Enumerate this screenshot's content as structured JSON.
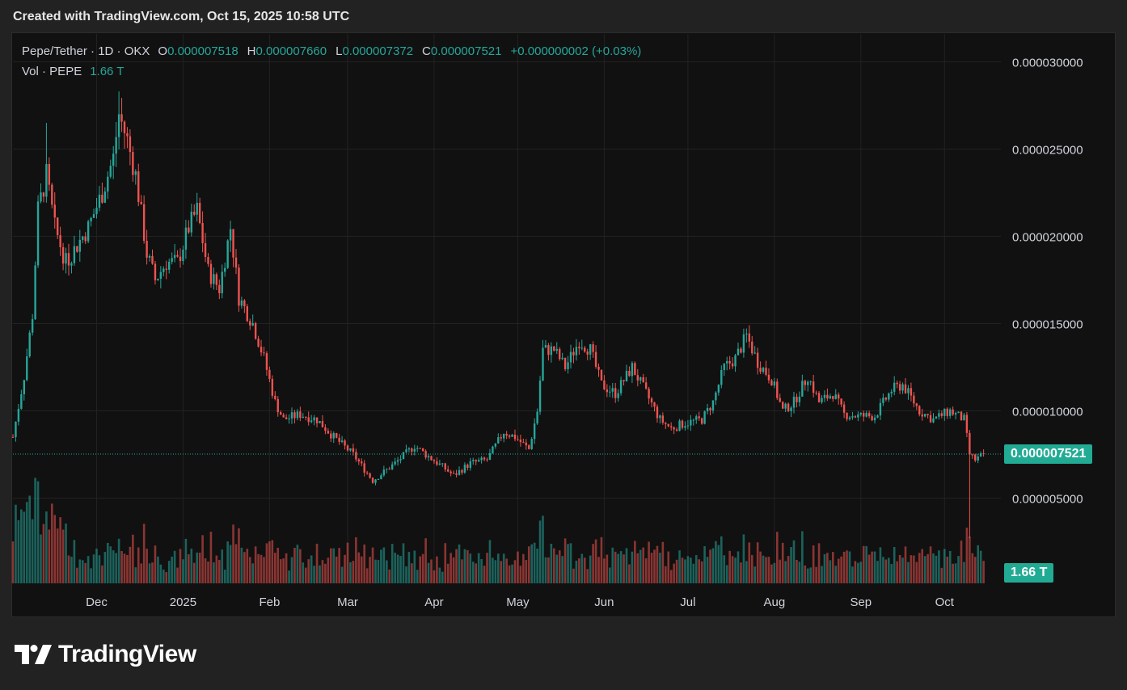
{
  "caption": "Created with TradingView.com, Oct 15, 2025 10:58 UTC",
  "legend": {
    "symbol": "Pepe/Tether · 1D · OKX",
    "open_label": "O",
    "open": "0.000007518",
    "high_label": "H",
    "high": "0.000007660",
    "low_label": "L",
    "low": "0.000007372",
    "close_label": "C",
    "close": "0.000007521",
    "change": "+0.000000002 (+0.03%)",
    "vol_label": "Vol · PEPE",
    "vol": "1.66 T"
  },
  "price_badge": "0.000007521",
  "volume_badge": "1.66 T",
  "brand": "TradingView",
  "colors": {
    "up": "#26a69a",
    "down": "#ef5350",
    "background": "#111111",
    "grid": "#222222",
    "badge": "#22ab94"
  },
  "chart_data": {
    "type": "candlestick",
    "title": "Pepe/Tether · 1D · OKX",
    "y_axis_side": "right",
    "y_ticks": [
      "0.000030000",
      "0.000025000",
      "0.000020000",
      "0.000015000",
      "0.000010000",
      "0.000005000"
    ],
    "y_tick_values": [
      3e-05,
      2.5e-05,
      2e-05,
      1.5e-05,
      1e-05,
      5e-06
    ],
    "x_ticks": [
      "Dec",
      "2025",
      "Feb",
      "Mar",
      "Apr",
      "May",
      "Jun",
      "Jul",
      "Aug",
      "Sep",
      "Oct"
    ],
    "x_tick_dates": [
      "2024-12-01",
      "2025-01-01",
      "2025-02-01",
      "2025-03-01",
      "2025-04-01",
      "2025-05-01",
      "2025-06-01",
      "2025-07-01",
      "2025-08-01",
      "2025-09-01",
      "2025-10-01"
    ],
    "start_date": "2024-11-01",
    "end_date": "2025-10-15",
    "last_price": 7.521e-06,
    "grid": true,
    "series": [
      {
        "name": "Pepe/Tether",
        "close_path": [
          [
            "2024-11-01",
            8.5e-06
          ],
          [
            "2024-11-05",
            1.2e-05
          ],
          [
            "2024-11-08",
            1.55e-05
          ],
          [
            "2024-11-10",
            2.15e-05
          ],
          [
            "2024-11-13",
            2.35e-05
          ],
          [
            "2024-11-16",
            2.05e-05
          ],
          [
            "2024-11-20",
            1.85e-05
          ],
          [
            "2024-11-24",
            1.95e-05
          ],
          [
            "2024-11-28",
            2.05e-05
          ],
          [
            "2024-12-03",
            2.25e-05
          ],
          [
            "2024-12-07",
            2.45e-05
          ],
          [
            "2024-12-09",
            2.7e-05
          ],
          [
            "2024-12-12",
            2.55e-05
          ],
          [
            "2024-12-15",
            2.35e-05
          ],
          [
            "2024-12-19",
            1.9e-05
          ],
          [
            "2024-12-22",
            1.75e-05
          ],
          [
            "2024-12-26",
            1.85e-05
          ],
          [
            "2024-12-30",
            1.85e-05
          ],
          [
            "2025-01-03",
            2.05e-05
          ],
          [
            "2025-01-06",
            2.15e-05
          ],
          [
            "2025-01-10",
            1.8e-05
          ],
          [
            "2025-01-14",
            1.7e-05
          ],
          [
            "2025-01-18",
            2.05e-05
          ],
          [
            "2025-01-21",
            1.65e-05
          ],
          [
            "2025-01-26",
            1.5e-05
          ],
          [
            "2025-01-30",
            1.3e-05
          ],
          [
            "2025-02-03",
            1.05e-05
          ],
          [
            "2025-02-06",
            9.5e-06
          ],
          [
            "2025-02-12",
            9.8e-06
          ],
          [
            "2025-02-18",
            9.5e-06
          ],
          [
            "2025-02-24",
            8.5e-06
          ],
          [
            "2025-03-03",
            7.5e-06
          ],
          [
            "2025-03-10",
            6e-06
          ],
          [
            "2025-03-18",
            7e-06
          ],
          [
            "2025-03-25",
            8e-06
          ],
          [
            "2025-03-29",
            7.5e-06
          ],
          [
            "2025-04-04",
            6.8e-06
          ],
          [
            "2025-04-08",
            6.3e-06
          ],
          [
            "2025-04-14",
            7e-06
          ],
          [
            "2025-04-20",
            7.2e-06
          ],
          [
            "2025-04-26",
            8.8e-06
          ],
          [
            "2025-04-30",
            8.5e-06
          ],
          [
            "2025-05-05",
            7.8e-06
          ],
          [
            "2025-05-08",
            1e-05
          ],
          [
            "2025-05-10",
            1.35e-05
          ],
          [
            "2025-05-14",
            1.35e-05
          ],
          [
            "2025-05-18",
            1.25e-05
          ],
          [
            "2025-05-23",
            1.4e-05
          ],
          [
            "2025-05-27",
            1.35e-05
          ],
          [
            "2025-05-31",
            1.15e-05
          ],
          [
            "2025-06-05",
            1.1e-05
          ],
          [
            "2025-06-11",
            1.25e-05
          ],
          [
            "2025-06-16",
            1.1e-05
          ],
          [
            "2025-06-21",
            9.5e-06
          ],
          [
            "2025-06-25",
            9e-06
          ],
          [
            "2025-06-30",
            9.3e-06
          ],
          [
            "2025-07-06",
            9.5e-06
          ],
          [
            "2025-07-10",
            1.05e-05
          ],
          [
            "2025-07-14",
            1.25e-05
          ],
          [
            "2025-07-18",
            1.3e-05
          ],
          [
            "2025-07-22",
            1.43e-05
          ],
          [
            "2025-07-26",
            1.28e-05
          ],
          [
            "2025-07-31",
            1.18e-05
          ],
          [
            "2025-08-04",
            1e-05
          ],
          [
            "2025-08-08",
            1.05e-05
          ],
          [
            "2025-08-13",
            1.2e-05
          ],
          [
            "2025-08-17",
            1.05e-05
          ],
          [
            "2025-08-22",
            1.1e-05
          ],
          [
            "2025-08-26",
            9.8e-06
          ],
          [
            "2025-08-31",
            9.7e-06
          ],
          [
            "2025-09-06",
            9.7e-06
          ],
          [
            "2025-09-12",
            1.12e-05
          ],
          [
            "2025-09-16",
            1.15e-05
          ],
          [
            "2025-09-22",
            1e-05
          ],
          [
            "2025-09-27",
            9.5e-06
          ],
          [
            "2025-10-03",
            1e-05
          ],
          [
            "2025-10-08",
            9.5e-06
          ],
          [
            "2025-10-10",
            7.5e-06
          ],
          [
            "2025-10-12",
            7.2e-06
          ],
          [
            "2025-10-15",
            7.5e-06
          ]
        ],
        "notable_lows": [
          [
            "2025-10-10",
            2.7e-06
          ]
        ],
        "notable_highs": [
          [
            "2024-12-09",
            2.83e-05
          ],
          [
            "2024-11-13",
            2.65e-05
          ]
        ]
      },
      {
        "name": "Vol · PEPE",
        "last": "1.66 T"
      }
    ]
  }
}
